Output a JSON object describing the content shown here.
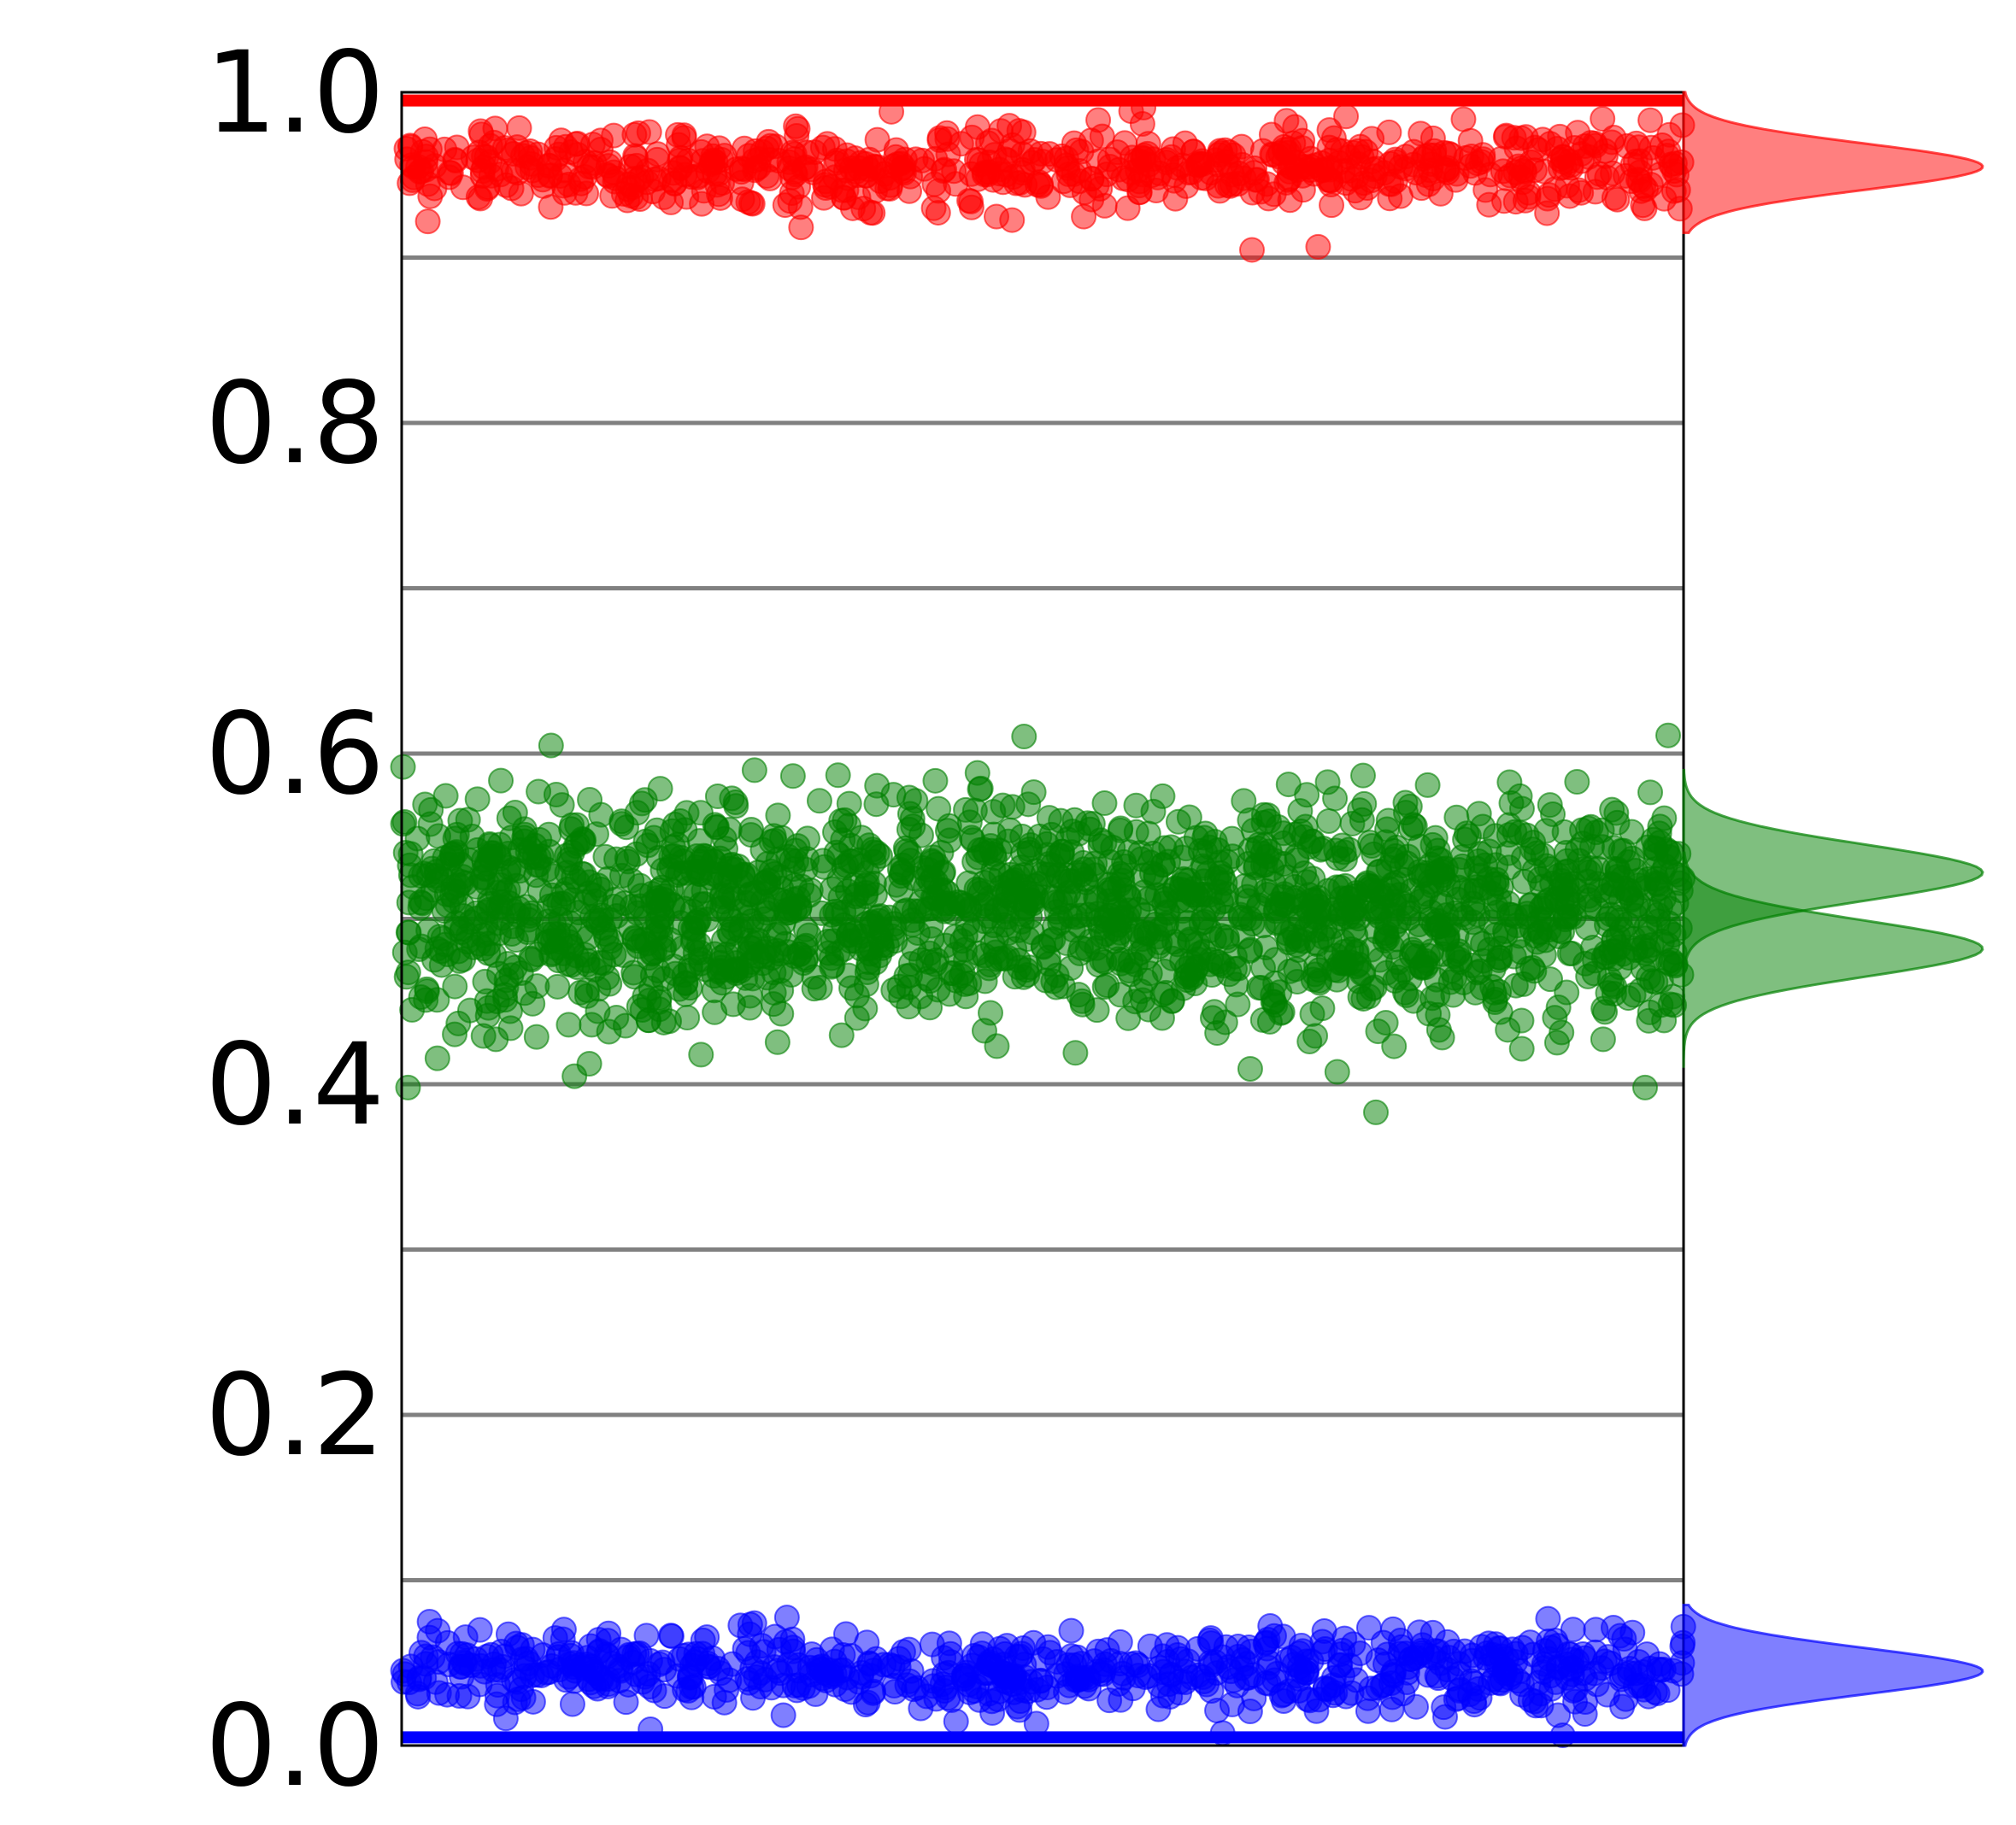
{
  "chart_data": {
    "type": "scatter",
    "title": "",
    "xlabel": "",
    "ylabel": "",
    "ylim": [
      0.0,
      1.0
    ],
    "xlim": [
      0,
      1000
    ],
    "x_ticks_shown": false,
    "yticks": [
      0.0,
      0.2,
      0.4,
      0.6,
      0.8,
      1.0
    ],
    "ytick_labels": [
      "0.0",
      "0.2",
      "0.4",
      "0.6",
      "0.8",
      "1.0"
    ],
    "gridlines_y": [
      0.1,
      0.2,
      0.3,
      0.4,
      0.5,
      0.6,
      0.7,
      0.8,
      0.9
    ],
    "grid": true,
    "grid_color": "#808080",
    "series": [
      {
        "color": "#ff0000",
        "center": 0.955,
        "spread": 0.012,
        "count": 700,
        "edge_line_y": 0.995
      },
      {
        "color": "#008000",
        "center": 0.5,
        "spread": 0.03,
        "count": 1900,
        "outliers": [
          [
            988,
            0.611
          ],
          [
            760,
            0.383
          ],
          [
            970,
            0.398
          ],
          [
            5,
            0.398
          ]
        ]
      },
      {
        "color": "#0000ff",
        "center": 0.045,
        "spread": 0.012,
        "count": 700,
        "edge_line_y": 0.005
      }
    ],
    "marginal_densities": [
      {
        "color": "#ff0000",
        "center": 0.955,
        "spread": 0.014,
        "range": [
          0.915,
          1.0
        ]
      },
      {
        "color": "#008000",
        "center": 0.528,
        "spread": 0.017,
        "range": [
          0.46,
          0.59
        ]
      },
      {
        "color": "#008000",
        "center": 0.482,
        "spread": 0.017,
        "range": [
          0.41,
          0.54
        ]
      },
      {
        "color": "#0000ff",
        "center": 0.045,
        "spread": 0.014,
        "range": [
          0.0,
          0.085
        ]
      }
    ]
  }
}
